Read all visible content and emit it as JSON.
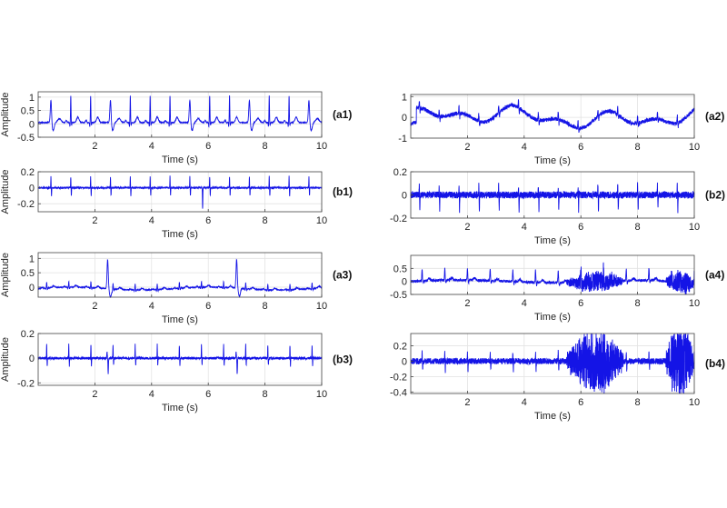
{
  "chart_data": [
    {
      "id": "a1",
      "label": "(a1)",
      "type": "line",
      "xlabel": "Time (s)",
      "ylabel": "Amplitude",
      "xlim": [
        0,
        10
      ],
      "ylim": [
        -0.5,
        1.2
      ],
      "xticks": [
        2,
        4,
        6,
        8,
        10
      ],
      "yticks": [
        -0.5,
        0,
        0.5,
        1
      ],
      "ytick_labels": [
        "-0.5",
        "0",
        "0.5",
        "1"
      ],
      "grid": true,
      "color": "#1414e6",
      "signal": {
        "kind": "ecg",
        "rr": 0.7,
        "phase": 0.45,
        "qrs": 1.0,
        "q": 0.15,
        "s": 0.1,
        "t": 0.2,
        "p": 0.08,
        "ectopic": [
          0,
          3,
          7,
          10,
          13
        ],
        "ectopic_amp": 0.85,
        "noise": 0.015,
        "baseline": 0.05,
        "wander": 0.0,
        "seed": 11
      }
    },
    {
      "id": "b1",
      "label": "(b1)",
      "type": "line",
      "xlabel": "Time (s)",
      "ylabel": "Amplitude",
      "xlim": [
        0,
        10
      ],
      "ylim": [
        -0.3,
        0.2
      ],
      "xticks": [
        2,
        4,
        6,
        8,
        10
      ],
      "yticks": [
        -0.2,
        0,
        0.2
      ],
      "ytick_labels": [
        "-0.2",
        "0",
        "0.2"
      ],
      "grid": true,
      "color": "#1414e6",
      "signal": {
        "kind": "detail",
        "rr": 0.7,
        "phase": 0.45,
        "spike": 0.14,
        "neg": 0.1,
        "bigneg_at": 5.8,
        "bigneg": -0.27,
        "noise": 0.012,
        "seed": 21
      }
    },
    {
      "id": "a3",
      "label": "(a3)",
      "type": "line",
      "xlabel": "Time (s)",
      "ylabel": "Amplitude",
      "xlim": [
        0,
        10
      ],
      "ylim": [
        -0.35,
        1.2
      ],
      "xticks": [
        2,
        4,
        6,
        8,
        10
      ],
      "yticks": [
        0,
        0.5,
        1
      ],
      "ytick_labels": [
        "0",
        "0.5",
        "1"
      ],
      "grid": true,
      "color": "#1414e6",
      "signal": {
        "kind": "ecg",
        "rr": 0.78,
        "phase": 0.3,
        "qrs": 0.2,
        "q": 0.05,
        "s": 0.05,
        "t": 0.06,
        "p": 0.03,
        "ectopic_times": [
          2.45,
          7.0
        ],
        "ectopic_amp": 1.0,
        "noise": 0.015,
        "baseline": -0.05,
        "wander": 0.05,
        "seed": 31
      }
    },
    {
      "id": "b3",
      "label": "(b3)",
      "type": "line",
      "xlabel": "Time (s)",
      "ylabel": "Amplitude",
      "xlim": [
        0,
        10
      ],
      "ylim": [
        -0.22,
        0.2
      ],
      "xticks": [
        2,
        4,
        6,
        8,
        10
      ],
      "yticks": [
        -0.2,
        0,
        0.2
      ],
      "ytick_labels": [
        "-0.2",
        "0",
        "0.2"
      ],
      "grid": true,
      "color": "#1414e6",
      "signal": {
        "kind": "detail",
        "rr": 0.78,
        "phase": 0.3,
        "spike": 0.11,
        "neg": 0.06,
        "bignegs": [
          2.45,
          7.0
        ],
        "bigneg": -0.13,
        "noise": 0.01,
        "seed": 41
      }
    },
    {
      "id": "a2",
      "label": "(a2)",
      "type": "line",
      "xlabel": "Time (s)",
      "ylabel": "",
      "xlim": [
        0,
        10
      ],
      "ylim": [
        -1,
        1.1
      ],
      "xticks": [
        2,
        4,
        6,
        8,
        10
      ],
      "yticks": [
        -1,
        0,
        1
      ],
      "ytick_labels": [
        "-1",
        "0",
        "1"
      ],
      "grid": true,
      "color": "#1414e6",
      "signal": {
        "kind": "wander",
        "amp": 0.45,
        "spikes": 0.35,
        "rr": 0.7,
        "phase": 0.3,
        "noise": 0.08,
        "seed": 51
      }
    },
    {
      "id": "b2",
      "label": "(b2)",
      "type": "line",
      "xlabel": "Time (s)",
      "ylabel": "",
      "xlim": [
        0,
        10
      ],
      "ylim": [
        -0.2,
        0.2
      ],
      "xticks": [
        2,
        4,
        6,
        8,
        10
      ],
      "yticks": [
        -0.2,
        0,
        0.2
      ],
      "ytick_labels": [
        "-0.2",
        "0",
        "0.2"
      ],
      "grid": true,
      "color": "#1414e6",
      "signal": {
        "kind": "detail",
        "rr": 0.7,
        "phase": 0.3,
        "spike": 0.08,
        "neg": 0.13,
        "noise": 0.03,
        "seed": 61
      }
    },
    {
      "id": "a4",
      "label": "(a4)",
      "type": "line",
      "xlabel": "Time (s)",
      "ylabel": "",
      "xlim": [
        0,
        10
      ],
      "ylim": [
        -0.5,
        1.0
      ],
      "xticks": [
        2,
        4,
        6,
        8,
        10
      ],
      "yticks": [
        -0.5,
        0,
        0.5
      ],
      "ytick_labels": [
        "-0.5",
        "0",
        "0.5"
      ],
      "grid": true,
      "color": "#1414e6",
      "signal": {
        "kind": "noisyecg",
        "rr": 0.8,
        "phase": 0.4,
        "qrs": 0.45,
        "noise": 0.05,
        "burst": [
          [
            5.5,
            7.5,
            0.3
          ],
          [
            9.0,
            10.0,
            0.35
          ]
        ],
        "drift": -0.15,
        "seed": 71
      }
    },
    {
      "id": "b4",
      "label": "(b4)",
      "type": "line",
      "xlabel": "Time (s)",
      "ylabel": "",
      "xlim": [
        0,
        10
      ],
      "ylim": [
        -0.42,
        0.36
      ],
      "xticks": [
        2,
        4,
        6,
        8,
        10
      ],
      "yticks": [
        -0.4,
        -0.2,
        0,
        0.2
      ],
      "ytick_labels": [
        "-0.4",
        "-0.2",
        "0",
        "0.2"
      ],
      "grid": true,
      "color": "#1414e6",
      "signal": {
        "kind": "noisydetail",
        "rr": 0.8,
        "phase": 0.4,
        "spike": 0.12,
        "neg": 0.12,
        "noise": 0.04,
        "burst": [
          [
            5.5,
            7.5,
            0.3
          ],
          [
            9.0,
            10.0,
            0.36
          ]
        ],
        "seed": 81
      }
    }
  ]
}
